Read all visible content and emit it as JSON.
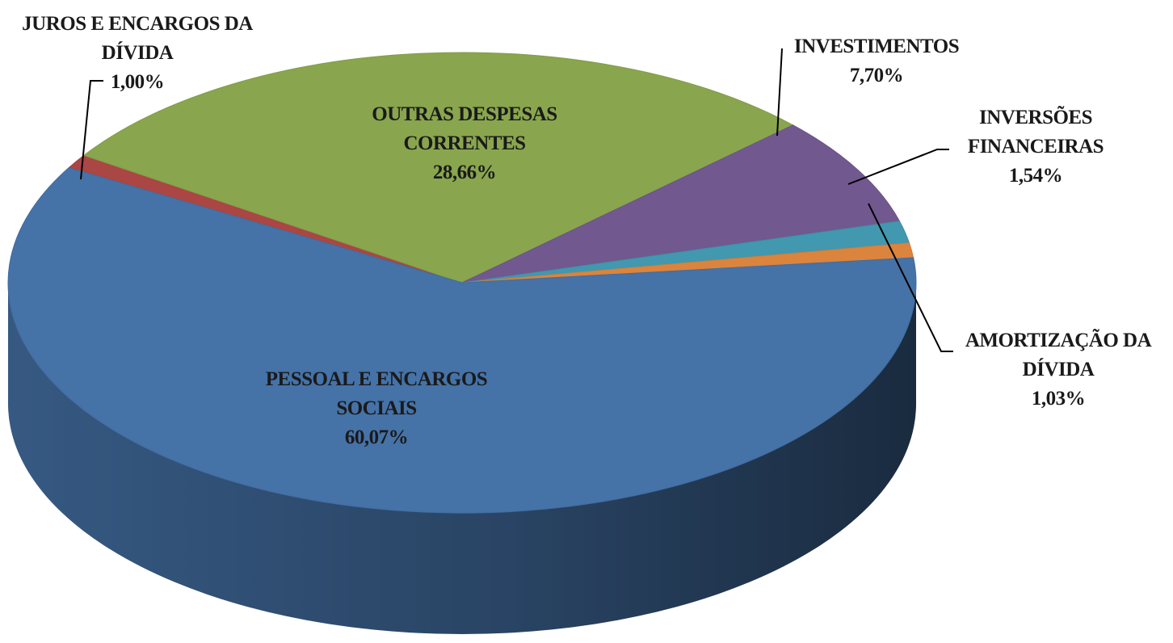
{
  "chart_data": {
    "type": "pie",
    "categories": [
      "JUROS E ENCARGOS DA DÍVIDA",
      "OUTRAS DESPESAS CORRENTES",
      "INVESTIMENTOS",
      "INVERSÕES FINANCEIRAS",
      "AMORTIZAÇÃO DA DÍVIDA",
      "PESSOAL E ENCARGOS SOCIAIS"
    ],
    "values": [
      1.0,
      28.66,
      7.7,
      1.54,
      1.03,
      60.07
    ],
    "value_labels": [
      "1,00%",
      "28,66%",
      "7,70%",
      "1,54%",
      "1,03%",
      "60,07%"
    ],
    "colors": [
      "#aa4643",
      "#89a54e",
      "#71588f",
      "#4198af",
      "#db843d",
      "#4572a7"
    ]
  }
}
